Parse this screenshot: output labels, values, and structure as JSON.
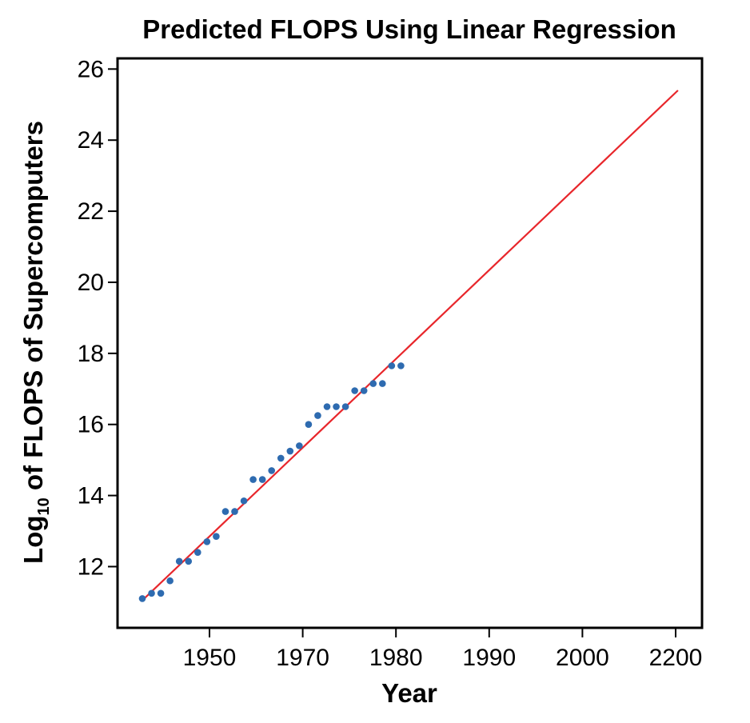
{
  "chart_data": {
    "type": "scatter",
    "title": "Predicted FLOPS Using Linear Regression",
    "xlabel": "Year",
    "ylabel_main": "Log",
    "ylabel_sub": "10",
    "ylabel_rest": " of FLOPS of Supercomputers",
    "x_ticks": [
      "1950",
      "1970",
      "1980",
      "1990",
      "2000",
      "2200"
    ],
    "y_ticks": [
      12,
      14,
      16,
      18,
      20,
      22,
      24,
      26
    ],
    "ylim": [
      10.3,
      26.3
    ],
    "colors": {
      "points": "#2e6bb0",
      "fit_line": "#e8262b",
      "axis": "#000000"
    },
    "points": [
      {
        "x": 1,
        "y": 11.1
      },
      {
        "x": 2,
        "y": 11.25
      },
      {
        "x": 3,
        "y": 11.25
      },
      {
        "x": 4,
        "y": 11.6
      },
      {
        "x": 5,
        "y": 12.15
      },
      {
        "x": 6,
        "y": 12.15
      },
      {
        "x": 7,
        "y": 12.4
      },
      {
        "x": 8,
        "y": 12.7
      },
      {
        "x": 9,
        "y": 12.85
      },
      {
        "x": 10,
        "y": 13.55
      },
      {
        "x": 11,
        "y": 13.55
      },
      {
        "x": 12,
        "y": 13.85
      },
      {
        "x": 13,
        "y": 14.45
      },
      {
        "x": 14,
        "y": 14.45
      },
      {
        "x": 15,
        "y": 14.7
      },
      {
        "x": 16,
        "y": 15.05
      },
      {
        "x": 17,
        "y": 15.25
      },
      {
        "x": 18,
        "y": 15.4
      },
      {
        "x": 19,
        "y": 16.0
      },
      {
        "x": 20,
        "y": 16.25
      },
      {
        "x": 21,
        "y": 16.5
      },
      {
        "x": 22,
        "y": 16.5
      },
      {
        "x": 23,
        "y": 16.5
      },
      {
        "x": 24,
        "y": 16.95
      },
      {
        "x": 25,
        "y": 16.95
      },
      {
        "x": 26,
        "y": 17.15
      },
      {
        "x": 27,
        "y": 17.15
      },
      {
        "x": 28,
        "y": 17.65
      },
      {
        "x": 29,
        "y": 17.65
      }
    ],
    "fit_line": {
      "x_start": 1,
      "y_start": 11.05,
      "x_end": 59,
      "y_end": 25.4
    }
  }
}
